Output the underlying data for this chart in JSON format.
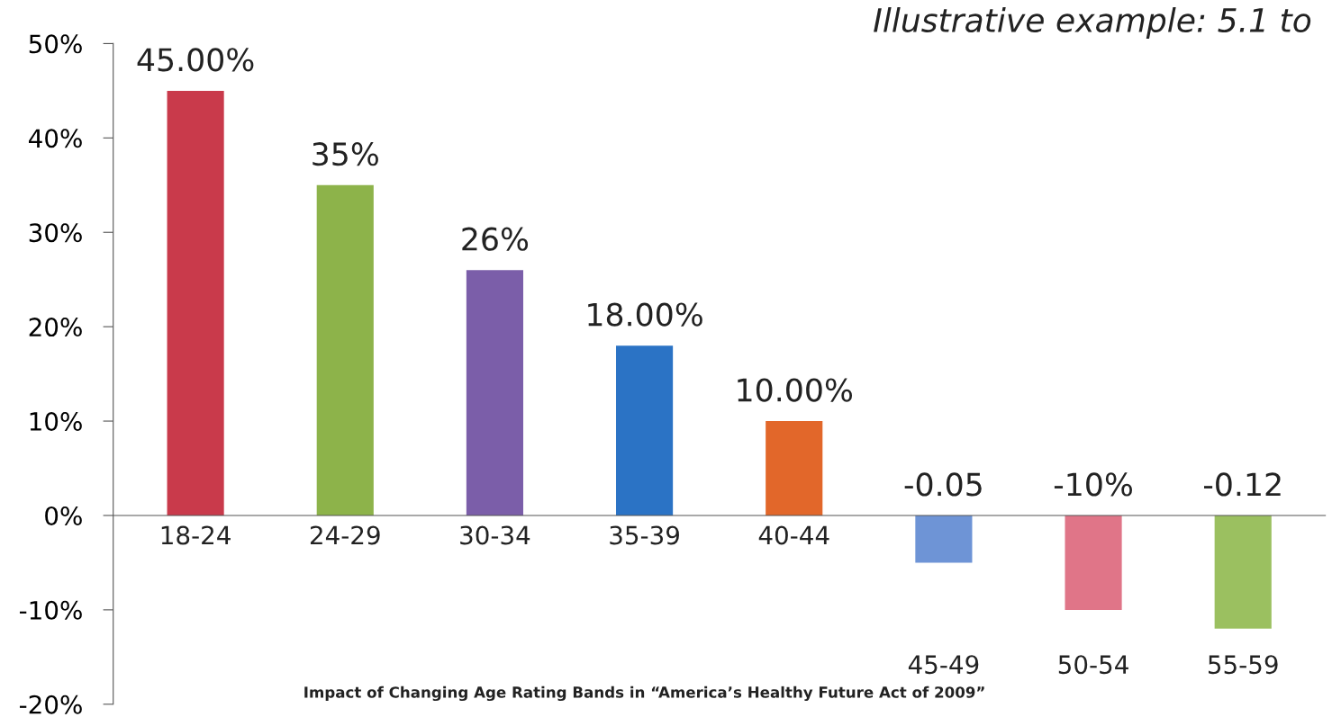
{
  "chart_data": {
    "type": "bar",
    "title": "Illustrative example: 5.1 to",
    "categories": [
      "18-24",
      "24-29",
      "30-34",
      "35-39",
      "40-44",
      "45-49",
      "50-54",
      "55-59"
    ],
    "values": [
      45,
      35,
      26,
      18,
      10,
      -5,
      -10,
      -12
    ],
    "colors": [
      "#c93a4b",
      "#8db34a",
      "#7b5ea9",
      "#2b73c5",
      "#e2672a",
      "#6e94d6",
      "#e07588",
      "#9bc060"
    ],
    "value_labels": [
      "45.00%",
      "35%",
      "26%",
      "18.00%",
      "10.00%",
      null,
      "-10%",
      null
    ],
    "ylim": [
      -20,
      50
    ],
    "yticks": [
      {
        "value": -20,
        "label": "-20%"
      },
      {
        "value": -10,
        "label": "-10%"
      },
      {
        "value": 0,
        "label": "0%"
      },
      {
        "value": 10,
        "label": "10%"
      },
      {
        "value": 20,
        "label": "20%"
      },
      {
        "value": 30,
        "label": "30%"
      },
      {
        "value": 40,
        "label": "40%"
      },
      {
        "value": 50,
        "label": "50%"
      }
    ],
    "annotations": [
      "Impact of Changing Age Rating Bands in “America’s Healthy Future Act of 2009”",
      "-0.05",
      "-0.12"
    ],
    "grid": false,
    "legend": false
  }
}
